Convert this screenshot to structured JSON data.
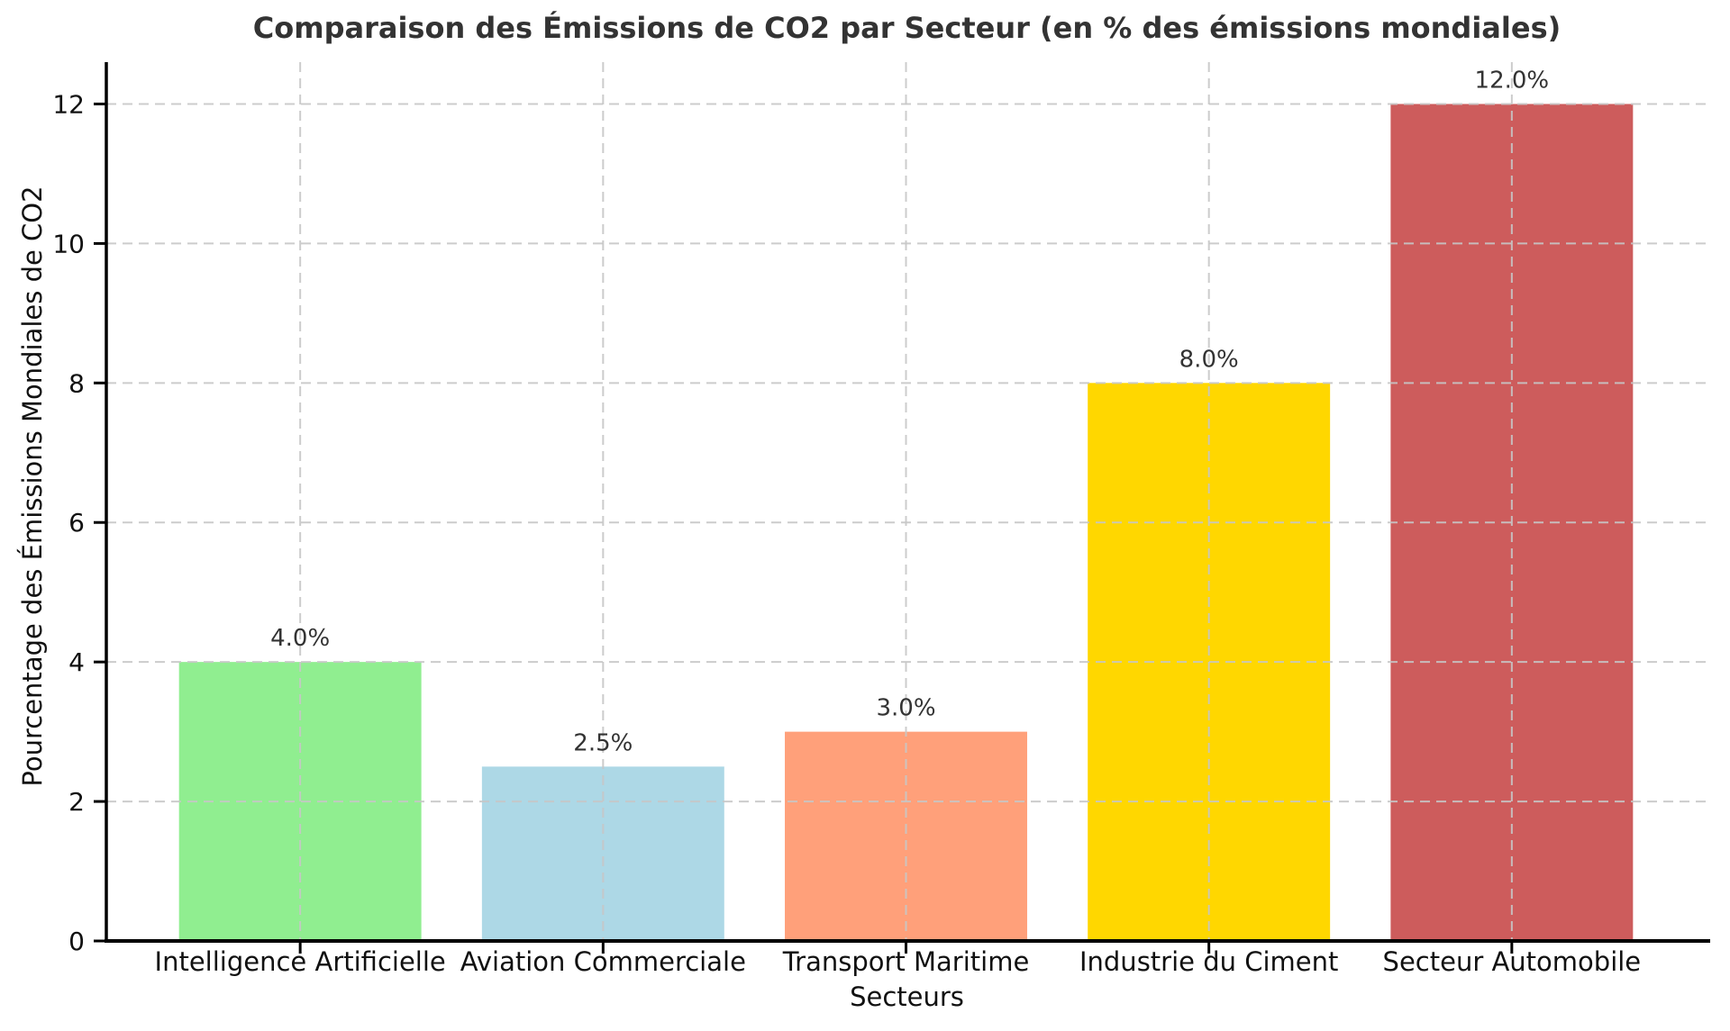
{
  "chart_data": {
    "type": "bar",
    "title": "Comparaison des Émissions de CO2 par Secteur (en % des émissions mondiales)",
    "xlabel": "Secteurs",
    "ylabel": "Pourcentage des Émissions Mondiales de CO2",
    "categories": [
      "Intelligence Artificielle",
      "Aviation Commerciale",
      "Transport Maritime",
      "Industrie du Ciment",
      "Secteur Automobile"
    ],
    "values": [
      4.0,
      2.5,
      3.0,
      8.0,
      12.0
    ],
    "bar_labels": [
      "4.0%",
      "2.5%",
      "3.0%",
      "8.0%",
      "12.0%"
    ],
    "bar_colors": [
      "#90EE90",
      "#ADD8E6",
      "#FFA07A",
      "#FFD700",
      "#CD5C5C"
    ],
    "yticks": [
      0,
      2,
      4,
      6,
      8,
      10,
      12
    ],
    "ytick_labels": [
      "0",
      "2",
      "4",
      "6",
      "8",
      "10",
      "12"
    ],
    "ylim": [
      0,
      12.6
    ],
    "grid": "dashed gridlines, horizontal at each y-tick and vertical at each bar center, drawn above bars",
    "legend": "none"
  },
  "style": {
    "background": "#ffffff",
    "grid_color": "#c6c6c6",
    "axis_color": "#000000",
    "tick_label_color": "#111111",
    "title_color": "#333333",
    "annotation_color": "#333333"
  }
}
